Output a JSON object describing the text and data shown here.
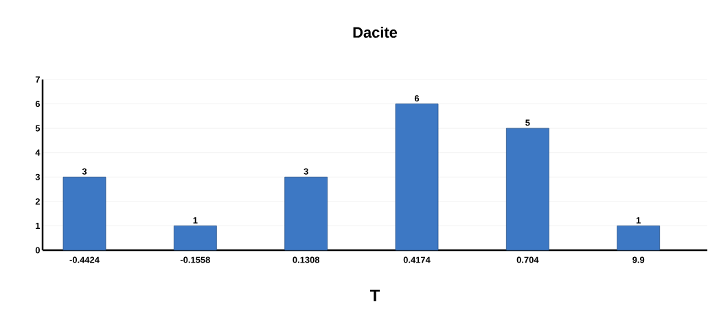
{
  "chart_data": {
    "type": "bar",
    "title": "Dacite",
    "xlabel": "T",
    "categories": [
      "-0.4424",
      "-0.1558",
      "0.1308",
      "0.4174",
      "0.704",
      "9.9"
    ],
    "values": [
      3,
      1,
      3,
      6,
      5,
      1
    ],
    "color": "#3d78c4",
    "ylim": [
      0,
      7
    ],
    "yticks": [
      0,
      1,
      2,
      3,
      4,
      5,
      6,
      7
    ],
    "grid": "y",
    "data_labels": true
  }
}
